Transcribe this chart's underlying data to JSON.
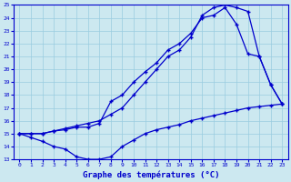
{
  "title": "Graphe des températures (°C)",
  "bg_color": "#cce8f0",
  "line_color": "#0000cc",
  "grid_color": "#99cce0",
  "xlim": [
    -0.5,
    23.5
  ],
  "ylim": [
    13,
    25
  ],
  "xticks": [
    0,
    1,
    2,
    3,
    4,
    5,
    6,
    7,
    8,
    9,
    10,
    11,
    12,
    13,
    14,
    15,
    16,
    17,
    18,
    19,
    20,
    21,
    22,
    23
  ],
  "yticks": [
    13,
    14,
    15,
    16,
    17,
    18,
    19,
    20,
    21,
    22,
    23,
    24,
    25
  ],
  "series1_x": [
    0,
    1,
    2,
    3,
    4,
    5,
    6,
    7,
    8,
    9,
    10,
    11,
    12,
    13,
    14,
    15,
    16,
    17,
    18,
    19,
    20,
    21,
    22,
    23
  ],
  "series1_y": [
    15.0,
    14.7,
    14.4,
    14.0,
    13.8,
    13.2,
    13.0,
    13.0,
    13.2,
    14.0,
    14.5,
    15.0,
    15.3,
    15.5,
    15.7,
    16.0,
    16.2,
    16.4,
    16.6,
    16.8,
    17.0,
    17.1,
    17.2,
    17.3
  ],
  "series2_x": [
    0,
    1,
    2,
    3,
    4,
    5,
    6,
    7,
    8,
    9,
    10,
    11,
    12,
    13,
    14,
    15,
    16,
    17,
    18,
    19,
    20,
    21,
    22,
    23
  ],
  "series2_y": [
    15.0,
    15.0,
    15.0,
    15.2,
    15.3,
    15.5,
    15.5,
    15.8,
    17.5,
    18.0,
    19.0,
    19.8,
    20.5,
    21.5,
    22.0,
    22.8,
    24.0,
    24.2,
    24.8,
    23.5,
    21.2,
    21.0,
    18.8,
    17.3
  ],
  "series3_x": [
    0,
    1,
    2,
    3,
    4,
    5,
    6,
    7,
    8,
    9,
    10,
    11,
    12,
    13,
    14,
    15,
    16,
    17,
    18,
    19,
    20,
    21,
    22,
    23
  ],
  "series3_y": [
    15.0,
    15.0,
    15.0,
    15.2,
    15.4,
    15.6,
    15.8,
    16.0,
    16.5,
    17.0,
    18.0,
    19.0,
    20.0,
    21.0,
    21.5,
    22.5,
    24.2,
    24.8,
    25.0,
    24.8,
    24.5,
    21.0,
    18.8,
    17.3
  ]
}
